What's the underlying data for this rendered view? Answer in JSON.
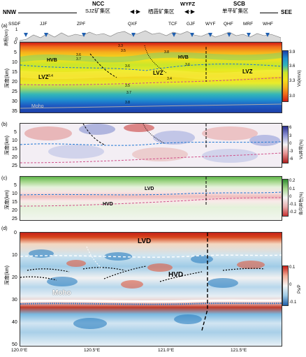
{
  "header": {
    "nnw": "NNW",
    "see": "SEE",
    "ncc": "NCC",
    "scb": "SCB",
    "wyfz": "WYFZ",
    "sjz": "SJZ矿集区",
    "qixia": "栖霞矿集区",
    "danping": "单平矿集区"
  },
  "faults": [
    "SSDF",
    "JJF",
    "ZPF",
    "QXF",
    "TCF",
    "GJF",
    "WYF",
    "QHF",
    "MRF",
    "WHF"
  ],
  "panels": {
    "a": {
      "letter": "(a)",
      "ylabel": "深度(km)",
      "ylabel_top": "高程(km)",
      "yticks": [
        "0",
        "5",
        "10",
        "15",
        "20",
        "25",
        "30",
        "35"
      ],
      "topticks": [
        "1",
        "0"
      ],
      "labels": {
        "hvb1": "HVB",
        "hvb2": "HVB",
        "lvz1": "LVZ",
        "lvz2": "LVZ",
        "lvz3": "LVZ",
        "moho": "Moho"
      },
      "contours": [
        "3.3",
        "3.5",
        "3.6",
        "3.7",
        "3.6",
        "3.8",
        "3.6",
        "3.4",
        "3.5",
        "3.4",
        "3.7",
        "3.8",
        "3.9"
      ],
      "cbar": {
        "label": "Vs(km/s)",
        "ticks": [
          "3.9",
          "3.6",
          "3.3",
          "3.0"
        ]
      }
    },
    "b": {
      "letter": "(b)",
      "ylabel": "深度(km)",
      "yticks": [
        "5",
        "10",
        "15",
        "20",
        "25"
      ],
      "cbar": {
        "label": "Vs异常(%)",
        "ticks": [
          "6",
          "3",
          "0",
          "-3",
          "-6"
        ]
      }
    },
    "c": {
      "letter": "(c)",
      "ylabel": "深度(km)",
      "yticks": [
        "5",
        "10",
        "15",
        "20",
        "25"
      ],
      "lvd": "LVD",
      "hvd": "HVD",
      "cbar": {
        "label": "各向异性(%)",
        "ticks": [
          "0.2",
          "0.1",
          "0",
          "-0.1",
          "-0.2"
        ]
      }
    },
    "d": {
      "letter": "(d)",
      "ylabel": "深度(km)",
      "yticks": [
        "0",
        "10",
        "20",
        "30",
        "40",
        "50"
      ],
      "lvd": "LVD",
      "hvd": "HVD",
      "moho": "Moho",
      "cbar": {
        "label": "Ps/P",
        "ticks": [
          "0.1",
          "0",
          "-0.1"
        ]
      }
    }
  },
  "xaxis": {
    "ticks": [
      "120.0°E",
      "120.5°E",
      "121.0°E",
      "121.5°E"
    ]
  },
  "colors": {
    "blue_dash": "#1f77d4",
    "pink_dash": "#d0508a",
    "black": "#000000",
    "white_dash": "#ffffff"
  }
}
